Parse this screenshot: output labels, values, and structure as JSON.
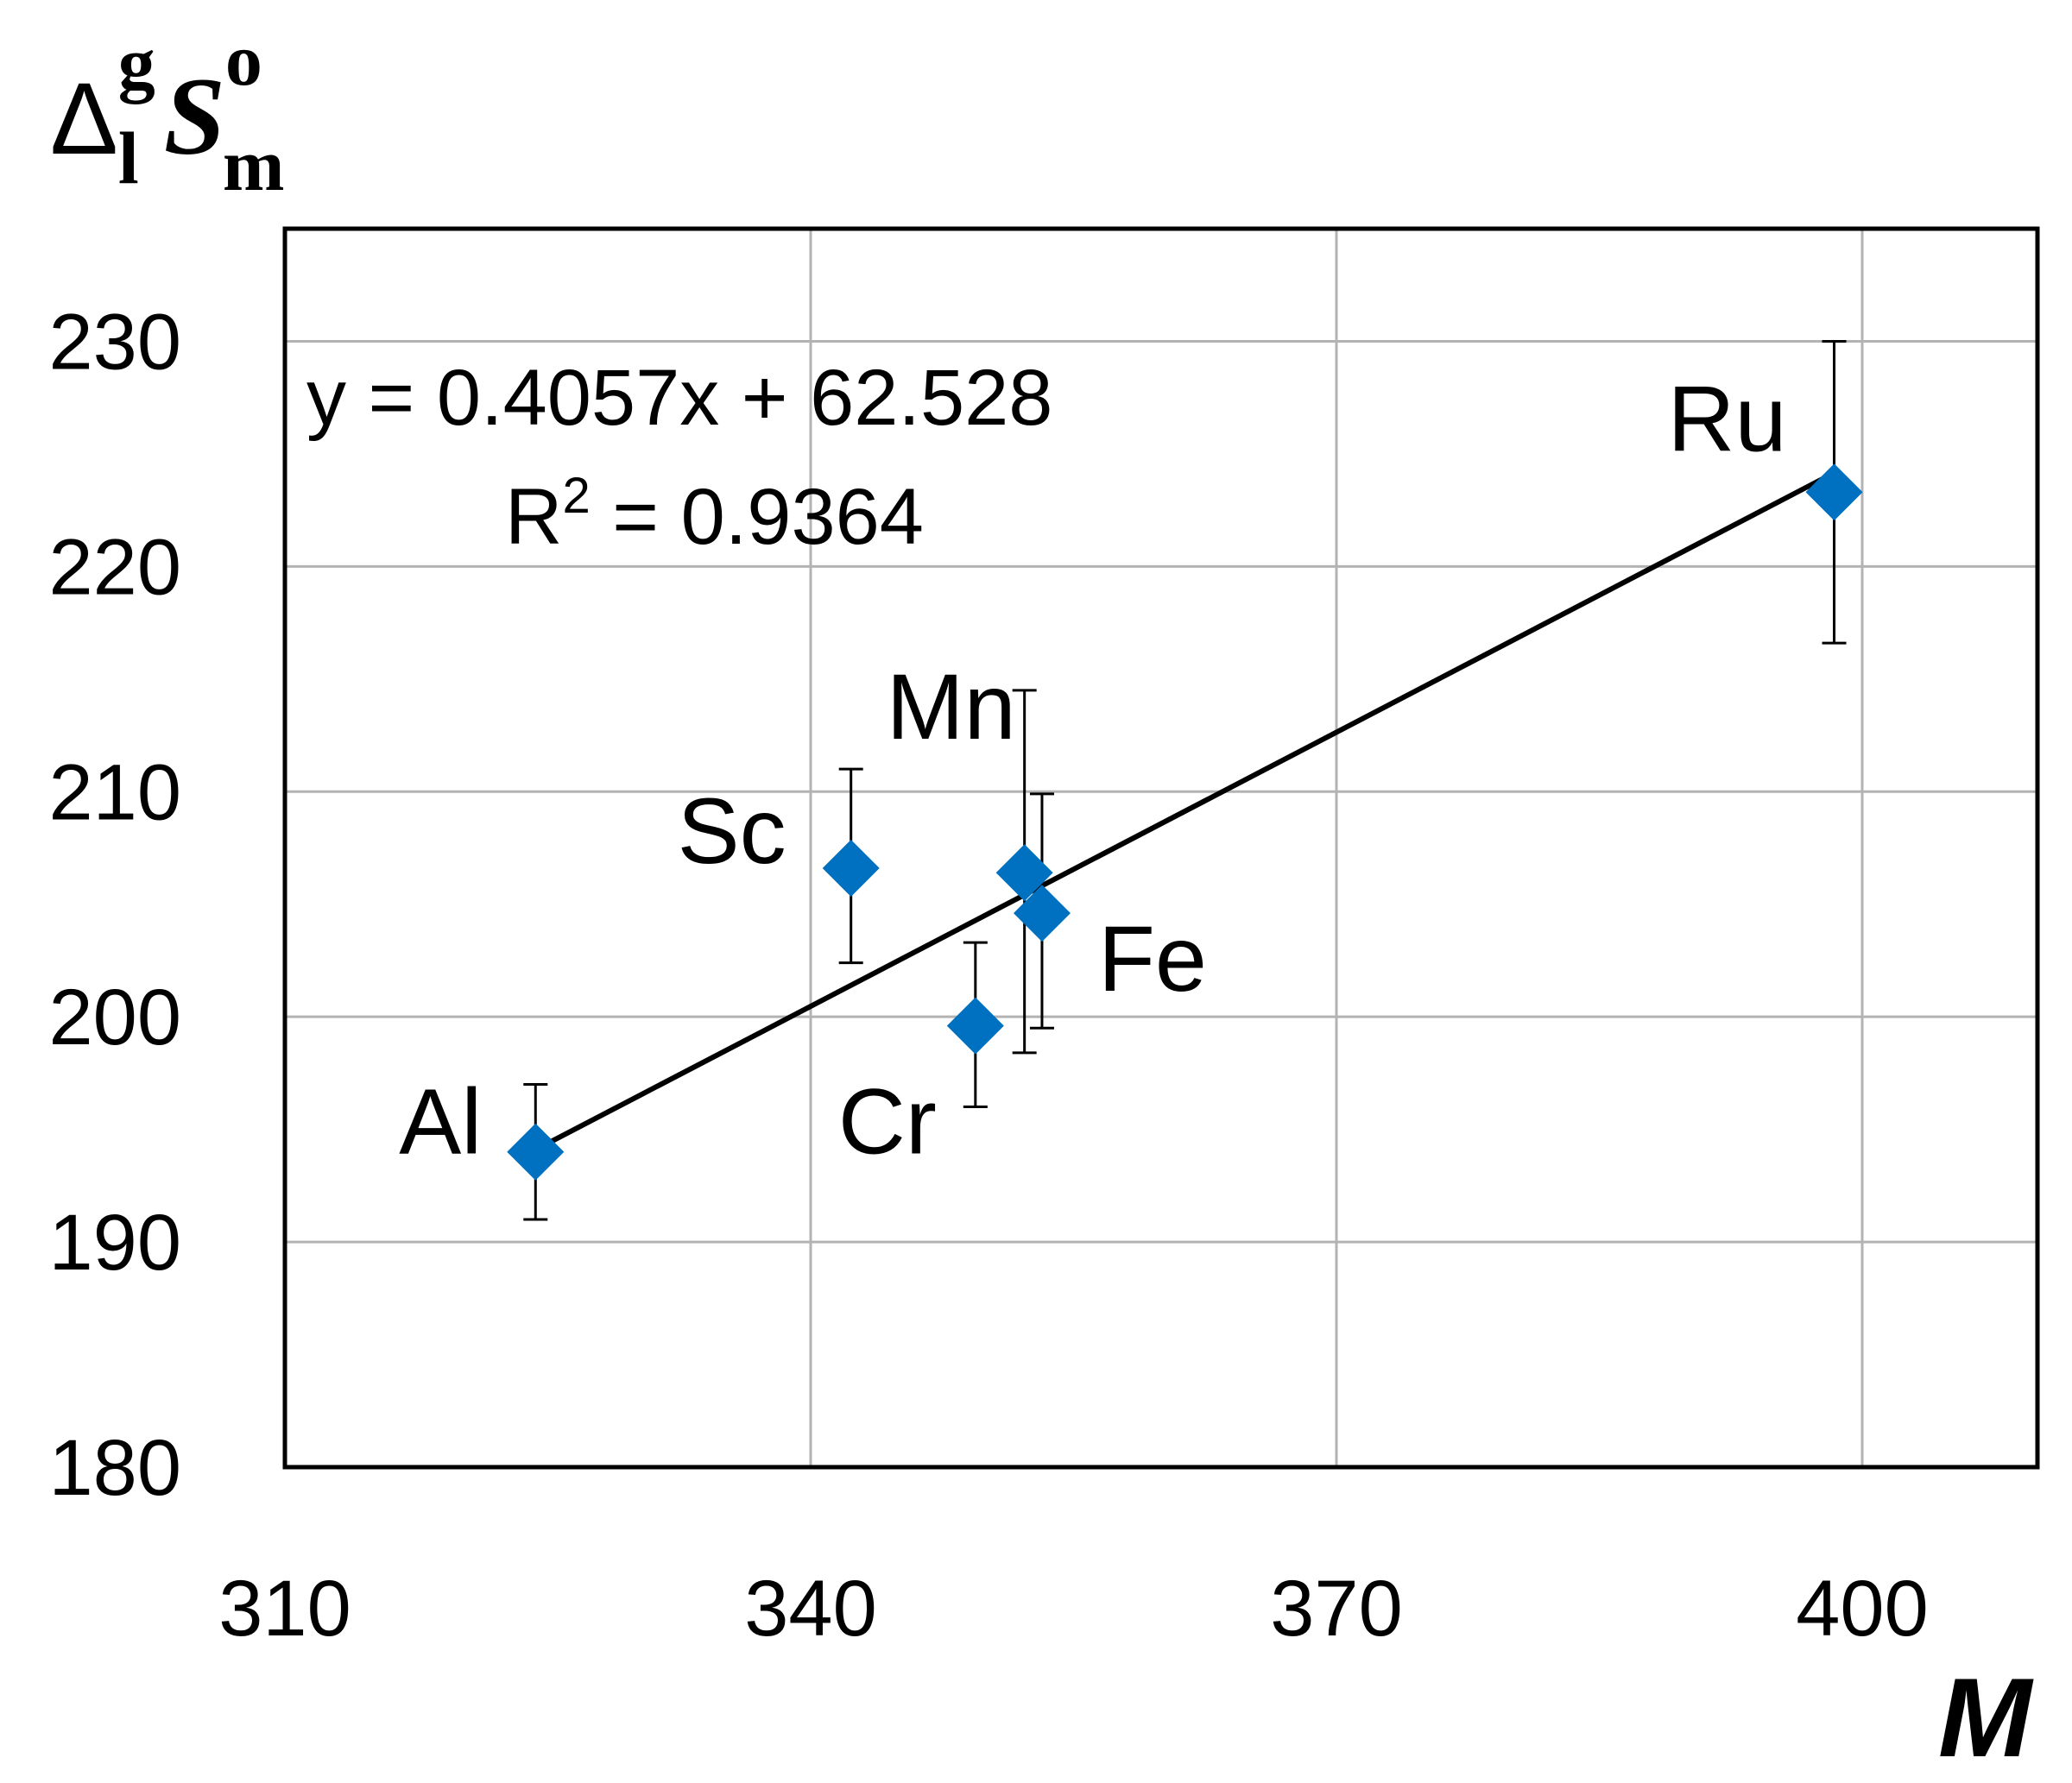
{
  "chart_data": {
    "type": "scatter",
    "y_title": {
      "symbol": "Δ",
      "sub": "l",
      "sup": "g",
      "main": "S",
      "main_sup": "o",
      "main_sub": "m"
    },
    "xlabel": "M",
    "xlim": [
      310,
      410
    ],
    "ylim": [
      180,
      235
    ],
    "x_ticks": [
      310,
      340,
      370,
      400
    ],
    "y_ticks": [
      180,
      190,
      200,
      210,
      220,
      230
    ],
    "grid": true,
    "marker": "diamond",
    "marker_color": "#0070C0",
    "points": [
      {
        "label": "Al",
        "x": 324.3,
        "y": 194.0,
        "err_low": 191.0,
        "err_high": 197.0
      },
      {
        "label": "Sc",
        "x": 342.3,
        "y": 206.6,
        "err_low": 202.4,
        "err_high": 211.0
      },
      {
        "label": "Cr",
        "x": 349.4,
        "y": 199.6,
        "err_low": 196.0,
        "err_high": 203.3
      },
      {
        "label": "Mn",
        "x": 352.2,
        "y": 206.4,
        "err_low": 198.4,
        "err_high": 214.5
      },
      {
        "label": "Fe",
        "x": 353.2,
        "y": 204.6,
        "err_low": 199.5,
        "err_high": 209.9
      },
      {
        "label": "Ru",
        "x": 398.4,
        "y": 223.3,
        "err_low": 216.6,
        "err_high": 230.0
      }
    ],
    "trendline": {
      "slope": 0.4057,
      "intercept": 62.528,
      "x_range": [
        324.3,
        398.4
      ],
      "equation": "y = 0.4057x + 62.528",
      "r2_prefix": "R",
      "r2_sup": "2",
      "r2_value": " = 0.9364"
    }
  }
}
